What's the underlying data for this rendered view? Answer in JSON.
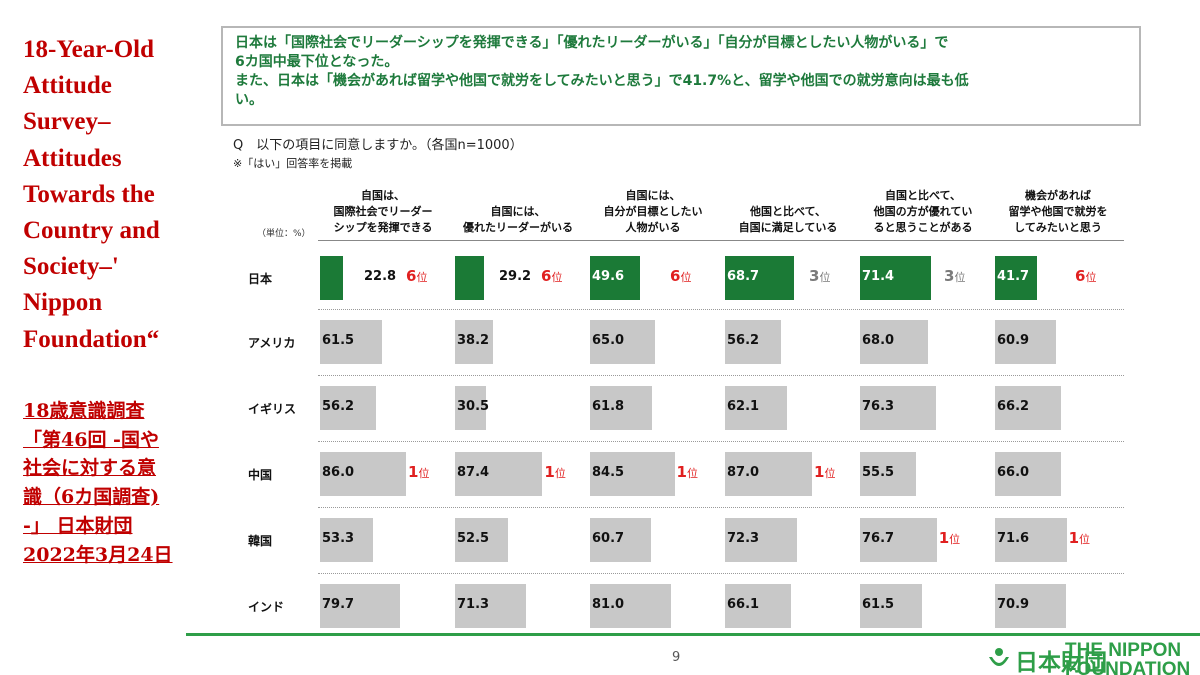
{
  "left_title": "18-Year-Old Attitude Survey–Attitudes Towards the Country and Society–' Nippon Foundation“",
  "left_jp_lines": [
    "18歳意識調査",
    "「第46回 -国や",
    "社会に対する意",
    "識（6カ国調査)",
    "-」 日本財団",
    "2022年3月24日"
  ],
  "summary_lines": [
    "日本は「国際社会でリーダーシップを発揮できる」「優れたリーダーがいる」「自分が目標としたい人物がいる」で",
    "6カ国中最下位となった。",
    "また、日本は「機会があれば留学や他国で就労をしてみたいと思う」で41.7%と、留学や他国での就労意向は最も低",
    "い。"
  ],
  "question": "Q　以下の項目に同意しますか。（各国n=1000）",
  "note": "※「はい」回答率を掲載",
  "unit_label": "（単位：%）",
  "page_number": "9",
  "logo": {
    "jp": "日本財団",
    "en_lines": [
      "THE NIPPON",
      "FOUNDATION"
    ]
  },
  "colors": {
    "japan_bar": "#1b7a36",
    "other_bar": "#c8c8c8",
    "rank_red": "#e02020",
    "accent_green": "#2e9e48",
    "title_red": "#c00000"
  },
  "chart_data": {
    "type": "bar",
    "orientation": "horizontal-small-multiples",
    "categories": [
      "日本",
      "アメリカ",
      "イギリス",
      "中国",
      "韓国",
      "インド"
    ],
    "columns": [
      "自国は、\n国際社会でリーダー\nシップを発揮できる",
      "自国には、\n優れたリーダーがいる",
      "自国には、\n自分が目標としたい\n人物がいる",
      "他国と比べて、\n自国に満足している",
      "自国と比べて、\n他国の方が優れてい\nると思うことがある",
      "機会があれば\n留学や他国で就労を\nしてみたいと思う"
    ],
    "values": [
      [
        "22.8",
        "29.2",
        "49.6",
        "68.7",
        "71.4",
        "41.7"
      ],
      [
        "61.5",
        "38.2",
        "65.0",
        "56.2",
        "68.0",
        "60.9"
      ],
      [
        "56.2",
        "30.5",
        "61.8",
        "62.1",
        "76.3",
        "66.2"
      ],
      [
        "86.0",
        "87.4",
        "84.5",
        "87.0",
        "55.5",
        "66.0"
      ],
      [
        "53.3",
        "52.5",
        "60.7",
        "72.3",
        "76.7",
        "71.6"
      ],
      [
        "79.7",
        "71.3",
        "81.0",
        "66.1",
        "61.5",
        "70.9"
      ]
    ],
    "ranks": [
      [
        {
          "num": "6",
          "suffix": "位",
          "color": "red"
        },
        {
          "num": "6",
          "suffix": "位",
          "color": "red"
        },
        {
          "num": "6",
          "suffix": "位",
          "color": "red"
        },
        {
          "num": "3",
          "suffix": "位",
          "color": "gray"
        },
        {
          "num": "3",
          "suffix": "位",
          "color": "gray"
        },
        {
          "num": "6",
          "suffix": "位",
          "color": "red"
        }
      ],
      [
        null,
        null,
        null,
        null,
        null,
        null
      ],
      [
        null,
        null,
        null,
        null,
        null,
        null
      ],
      [
        {
          "num": "1",
          "suffix": "位",
          "color": "red"
        },
        {
          "num": "1",
          "suffix": "位",
          "color": "red"
        },
        {
          "num": "1",
          "suffix": "位",
          "color": "red"
        },
        {
          "num": "1",
          "suffix": "位",
          "color": "red"
        },
        null,
        null
      ],
      [
        null,
        null,
        null,
        null,
        {
          "num": "1",
          "suffix": "位",
          "color": "red"
        },
        {
          "num": "1",
          "suffix": "位",
          "color": "red"
        }
      ],
      [
        null,
        null,
        null,
        null,
        null,
        null
      ]
    ],
    "xlim": [
      0,
      100
    ]
  }
}
